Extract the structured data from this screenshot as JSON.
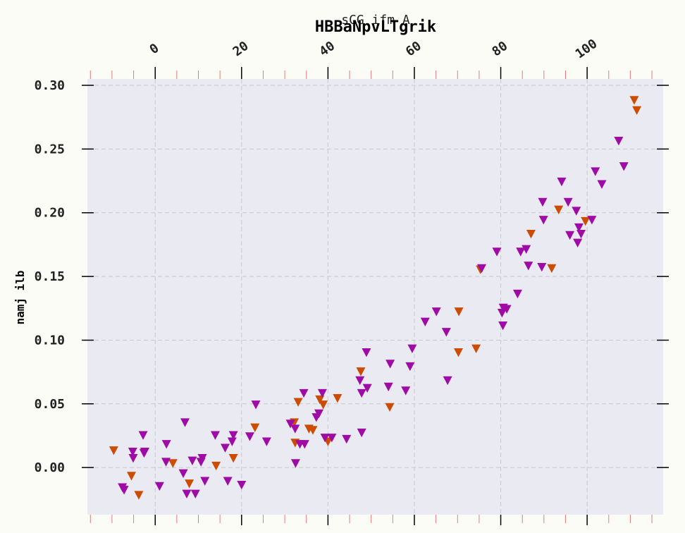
{
  "chart_data": {
    "type": "scatter",
    "title": "HBBaNpvLTgrik",
    "subtitle": "sCG ifm A",
    "xlabel": "",
    "ylabel": "namj ilb",
    "xlim": [
      -15.7,
      117.6
    ],
    "ylim": [
      -0.037,
      0.305
    ],
    "x_ticks": [
      0,
      20,
      40,
      60,
      80,
      100
    ],
    "y_ticks": [
      0.0,
      0.05,
      0.1,
      0.15,
      0.2,
      0.25,
      0.3
    ],
    "y_tick_labels": [
      "0.00",
      "0.05",
      "0.10",
      "0.15",
      "0.20",
      "0.25",
      "0.30"
    ],
    "x_axis_position": "top",
    "grid": true,
    "marker": "triangle-down",
    "colors": {
      "series_a": "#cc4c02",
      "series_b": "#9e0ca5",
      "plot_bg": "#eaeaf2",
      "page_bg": "#fcfcf7",
      "minor_tick": "#e87a7a"
    },
    "series": [
      {
        "color": "#cc4c02",
        "points": [
          [
            -9.6,
            0.013
          ],
          [
            -5.5,
            -0.007
          ],
          [
            -3.8,
            -0.022
          ],
          [
            4.1,
            0.003
          ],
          [
            7.9,
            -0.013
          ],
          [
            14.1,
            0.001
          ],
          [
            18.1,
            0.007
          ],
          [
            23.1,
            0.031
          ],
          [
            32.2,
            0.035
          ],
          [
            32.4,
            0.019
          ],
          [
            33.1,
            0.051
          ],
          [
            35.6,
            0.03
          ],
          [
            36.5,
            0.029
          ],
          [
            38.1,
            0.053
          ],
          [
            38.9,
            0.049
          ],
          [
            40.0,
            0.02
          ],
          [
            42.2,
            0.054
          ],
          [
            47.6,
            0.075
          ],
          [
            54.3,
            0.047
          ],
          [
            70.3,
            0.122
          ],
          [
            70.2,
            0.09
          ],
          [
            74.3,
            0.093
          ],
          [
            75.3,
            0.155
          ],
          [
            87.0,
            0.183
          ],
          [
            91.8,
            0.156
          ],
          [
            93.4,
            0.202
          ],
          [
            99.6,
            0.193
          ],
          [
            110.9,
            0.288
          ],
          [
            111.5,
            0.28
          ]
        ]
      },
      {
        "color": "#9e0ca5",
        "points": [
          [
            -7.6,
            -0.016
          ],
          [
            -7.2,
            -0.018
          ],
          [
            -5.2,
            0.012
          ],
          [
            -5.1,
            0.007
          ],
          [
            -2.8,
            0.025
          ],
          [
            -2.6,
            0.011
          ],
          [
            -2.4,
            0.012
          ],
          [
            1.0,
            -0.015
          ],
          [
            2.6,
            0.018
          ],
          [
            2.5,
            0.004
          ],
          [
            6.5,
            -0.005
          ],
          [
            6.9,
            0.035
          ],
          [
            7.3,
            -0.021
          ],
          [
            8.6,
            0.005
          ],
          [
            9.3,
            -0.021
          ],
          [
            10.6,
            0.004
          ],
          [
            10.9,
            0.007
          ],
          [
            11.5,
            -0.011
          ],
          [
            13.9,
            0.025
          ],
          [
            16.2,
            0.015
          ],
          [
            16.8,
            -0.011
          ],
          [
            17.8,
            0.02
          ],
          [
            18.1,
            0.025
          ],
          [
            20.0,
            -0.014
          ],
          [
            21.9,
            0.024
          ],
          [
            23.3,
            0.049
          ],
          [
            25.8,
            0.02
          ],
          [
            31.3,
            0.034
          ],
          [
            32.5,
            0.003
          ],
          [
            32.4,
            0.03
          ],
          [
            33.5,
            0.018
          ],
          [
            34.4,
            0.058
          ],
          [
            34.6,
            0.018
          ],
          [
            37.3,
            0.039
          ],
          [
            37.9,
            0.042
          ],
          [
            38.7,
            0.058
          ],
          [
            39.3,
            0.023
          ],
          [
            40.9,
            0.023
          ],
          [
            44.3,
            0.022
          ],
          [
            47.4,
            0.068
          ],
          [
            47.8,
            0.027
          ],
          [
            47.8,
            0.058
          ],
          [
            48.9,
            0.09
          ],
          [
            49.1,
            0.062
          ],
          [
            54.0,
            0.063
          ],
          [
            54.4,
            0.081
          ],
          [
            58.0,
            0.06
          ],
          [
            59.0,
            0.079
          ],
          [
            59.5,
            0.093
          ],
          [
            62.5,
            0.114
          ],
          [
            65.1,
            0.122
          ],
          [
            67.4,
            0.106
          ],
          [
            67.7,
            0.068
          ],
          [
            75.6,
            0.156
          ],
          [
            79.1,
            0.169
          ],
          [
            80.3,
            0.121
          ],
          [
            80.5,
            0.111
          ],
          [
            80.6,
            0.125
          ],
          [
            81.4,
            0.124
          ],
          [
            83.9,
            0.136
          ],
          [
            84.6,
            0.169
          ],
          [
            85.9,
            0.171
          ],
          [
            86.4,
            0.158
          ],
          [
            89.5,
            0.157
          ],
          [
            89.7,
            0.208
          ],
          [
            89.9,
            0.194
          ],
          [
            94.1,
            0.224
          ],
          [
            95.6,
            0.208
          ],
          [
            96.0,
            0.182
          ],
          [
            97.5,
            0.201
          ],
          [
            97.8,
            0.176
          ],
          [
            98.1,
            0.188
          ],
          [
            98.6,
            0.183
          ],
          [
            101.1,
            0.194
          ],
          [
            101.9,
            0.232
          ],
          [
            103.4,
            0.222
          ],
          [
            107.3,
            0.256
          ],
          [
            108.5,
            0.236
          ]
        ]
      }
    ]
  }
}
